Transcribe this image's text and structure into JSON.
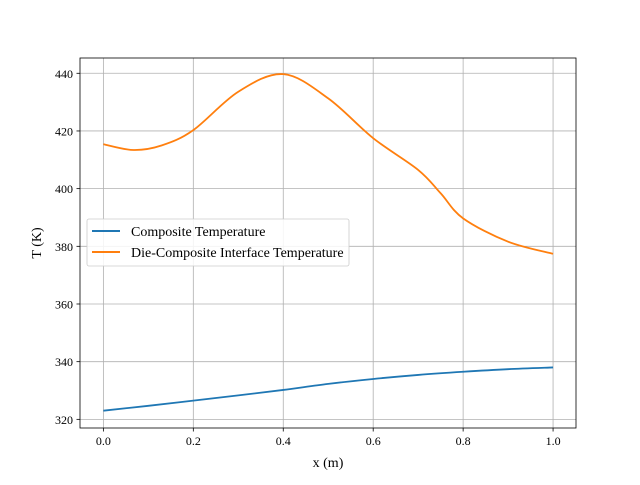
{
  "chart_data": {
    "type": "line",
    "title": "",
    "xlabel": "x (m)",
    "ylabel": "T (K)",
    "xlim": [
      -0.052,
      1.051
    ],
    "ylim": [
      317.0,
      445.3
    ],
    "xticks": [
      0.0,
      0.2,
      0.4,
      0.6,
      0.8,
      1.0
    ],
    "xtick_labels": [
      "0.0",
      "0.2",
      "0.4",
      "0.6",
      "0.8",
      "1.0"
    ],
    "yticks": [
      320,
      340,
      360,
      380,
      400,
      420,
      440
    ],
    "ytick_labels": [
      "320",
      "340",
      "360",
      "380",
      "400",
      "420",
      "440"
    ],
    "grid": true,
    "legend_position": "center-left",
    "series": [
      {
        "name": "Composite Temperature",
        "color": "#1f77b4",
        "x": [
          0.0,
          0.1,
          0.2,
          0.3,
          0.4,
          0.5,
          0.6,
          0.7,
          0.8,
          0.9,
          1.0
        ],
        "y": [
          323.0,
          324.7,
          326.5,
          328.3,
          330.2,
          332.3,
          334.0,
          335.4,
          336.5,
          337.4,
          338.0
        ]
      },
      {
        "name": "Die-Composite Interface Temperature",
        "color": "#ff7f0e",
        "x": [
          0.0,
          0.067,
          0.13,
          0.2,
          0.3,
          0.4,
          0.5,
          0.6,
          0.7,
          0.75,
          0.8,
          0.9,
          1.0
        ],
        "y": [
          415.4,
          413.4,
          415.0,
          420.3,
          433.6,
          439.7,
          431.3,
          417.5,
          406.5,
          398.4,
          389.7,
          381.6,
          377.4
        ]
      }
    ]
  }
}
